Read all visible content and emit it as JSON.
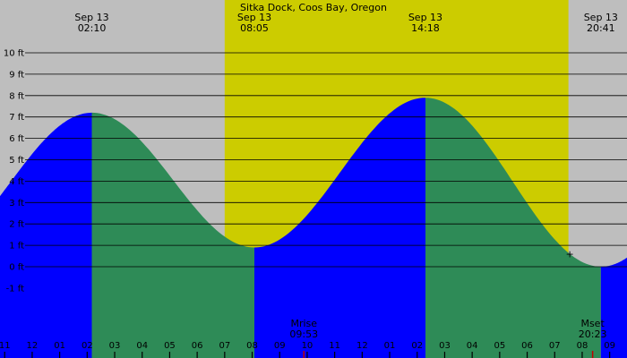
{
  "title": "Sitka Dock, Coos Bay, Oregon",
  "colors": {
    "night": "#bebebe",
    "day": "#cccc00",
    "rising": "#0000ff",
    "falling": "#2e8b57",
    "grid": "#000000",
    "moon_tick": "#c00000"
  },
  "chart_data": {
    "type": "area",
    "title": "Sitka Dock, Coos Bay, Oregon",
    "xlabel": "",
    "ylabel": "",
    "x_unit": "hour of day",
    "y_unit": "ft",
    "xlim": [
      -1.17,
      21.63
    ],
    "ylim": [
      -3.0,
      11.0
    ],
    "yticks": [
      -1,
      0,
      1,
      2,
      3,
      4,
      5,
      6,
      7,
      8,
      9,
      10
    ],
    "ytick_labels": [
      "-1 ft",
      "0 ft",
      "1 ft",
      "2 ft",
      "3 ft",
      "4 ft",
      "5 ft",
      "6 ft",
      "7 ft",
      "8 ft",
      "9 ft",
      "10 ft"
    ],
    "xticks": [
      -1,
      0,
      1,
      2,
      3,
      4,
      5,
      6,
      7,
      8,
      9,
      10,
      11,
      12,
      13,
      14,
      15,
      16,
      17,
      18,
      19,
      20,
      21
    ],
    "xtick_labels": [
      "11",
      "12",
      "01",
      "02",
      "03",
      "04",
      "05",
      "06",
      "07",
      "08",
      "09",
      "10",
      "11",
      "12",
      "01",
      "02",
      "03",
      "04",
      "05",
      "06",
      "07",
      "08",
      "09"
    ],
    "grid": true,
    "extremes": [
      {
        "date": "Sep 13",
        "time": "02:10",
        "hour": 2.17,
        "height": 7.2,
        "kind": "high"
      },
      {
        "date": "Sep 13",
        "time": "08:05",
        "hour": 8.08,
        "height": 0.9,
        "kind": "low"
      },
      {
        "date": "Sep 13",
        "time": "14:18",
        "hour": 14.3,
        "height": 7.9,
        "kind": "high"
      },
      {
        "date": "Sep 13",
        "time": "20:41",
        "hour": 20.68,
        "height": 0.0,
        "kind": "low"
      }
    ],
    "boundary_level": {
      "hour": -1.17,
      "height": 3.3
    },
    "daylight": {
      "start_hour": 7.0,
      "end_hour": 19.5
    },
    "moon_events": [
      {
        "label": "Mrise",
        "time": "09:53",
        "hour": 9.88
      },
      {
        "label": "Mset",
        "time": "20:23",
        "hour": 20.38
      }
    ],
    "marker": {
      "symbol": "+",
      "hour": 19.55,
      "height": 0.6
    }
  }
}
